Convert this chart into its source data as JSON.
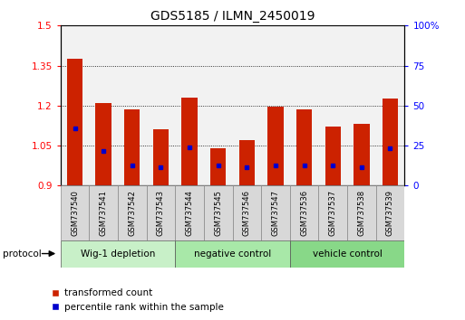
{
  "title": "GDS5185 / ILMN_2450019",
  "samples": [
    "GSM737540",
    "GSM737541",
    "GSM737542",
    "GSM737543",
    "GSM737544",
    "GSM737545",
    "GSM737546",
    "GSM737547",
    "GSM737536",
    "GSM737537",
    "GSM737538",
    "GSM737539"
  ],
  "bar_values": [
    1.375,
    1.21,
    1.185,
    1.11,
    1.23,
    1.04,
    1.07,
    1.195,
    1.185,
    1.12,
    1.13,
    1.225
  ],
  "blue_dot_values": [
    1.115,
    1.03,
    0.975,
    0.97,
    1.045,
    0.975,
    0.97,
    0.975,
    0.975,
    0.975,
    0.97,
    1.04
  ],
  "ylim": [
    0.9,
    1.5
  ],
  "yticks_left": [
    0.9,
    1.05,
    1.2,
    1.35,
    1.5
  ],
  "yticks_right": [
    0,
    25,
    50,
    75,
    100
  ],
  "bar_color": "#cc2200",
  "dot_color": "#0000cc",
  "bar_bottom": 0.9,
  "groups": [
    {
      "label": "Wig-1 depletion",
      "start": 0,
      "end": 4,
      "color": "#c8f0c8"
    },
    {
      "label": "negative control",
      "start": 4,
      "end": 8,
      "color": "#a8e8a8"
    },
    {
      "label": "vehicle control",
      "start": 8,
      "end": 12,
      "color": "#88d888"
    }
  ],
  "sample_box_color": "#d8d8d8",
  "protocol_label": "protocol",
  "legend_items": [
    {
      "label": "transformed count",
      "color": "#cc2200"
    },
    {
      "label": "percentile rank within the sample",
      "color": "#0000cc"
    }
  ],
  "title_fontsize": 10
}
